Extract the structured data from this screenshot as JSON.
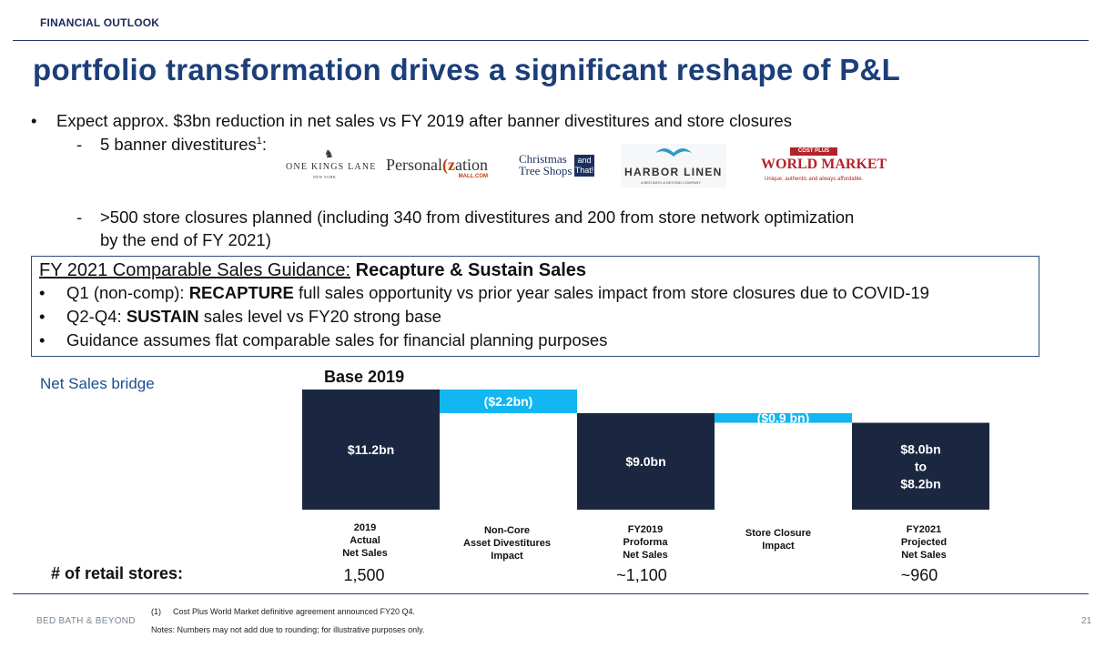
{
  "header": {
    "section": "FINANCIAL OUTLOOK",
    "title": "portfolio transformation drives a significant reshape of P&L"
  },
  "bullets": {
    "main": "Expect approx. $3bn reduction in net sales vs FY 2019 after banner divestitures and store closures",
    "sub1_text": "5 banner divestitures",
    "sub1_sup": "1",
    "sub1_colon": ":",
    "sub2_line1": ">500 store closures planned (including 340 from divestitures and 200 from store network optimization",
    "sub2_line2": "by the end of FY 2021)",
    "bullet_char": "•",
    "dash_char": "-"
  },
  "logos": {
    "one_kings_lane": "ONE KINGS LANE",
    "one_kings_lane_sub": "NEW YORK",
    "personalization_a": "Personal",
    "personalization_k": "(z",
    "personalization_b": "ation",
    "personalization_mall": "MALL.COM",
    "christmas_line1": "Christmas",
    "christmas_line2": "Tree Shops",
    "christmas_that": "and That!",
    "harbor_linen": "HARBOR LINEN",
    "harbor_linen_sub": "A BED BATH & BEYOND COMPANY",
    "world_market_top": "COST PLUS",
    "world_market": "WORLD MARKET",
    "world_market_tag": "Unique, authentic and always affordable.",
    "icon_one_kings_lane": "antelope-icon",
    "icon_harbor_linen": "seagull-icon"
  },
  "guidance": {
    "head_prefix": "FY 2021 Comparable Sales Guidance:",
    "head_bold": "Recapture & Sustain Sales",
    "items": [
      {
        "pre": "Q1 (non-comp): ",
        "bold": "RECAPTURE",
        "post": " full sales opportunity vs prior year sales impact from store closures due to COVID-19"
      },
      {
        "pre": "Q2-Q4: ",
        "bold": "SUSTAIN",
        "post": " sales level vs FY20 strong base"
      },
      {
        "pre": "Guidance assumes flat comparable sales for financial planning purposes",
        "bold": "",
        "post": ""
      }
    ]
  },
  "chart_labels": {
    "bridge": "Net Sales bridge",
    "base": "Base 2019",
    "stores_label": "# of retail stores:"
  },
  "chart_data": {
    "type": "bar",
    "subtype": "waterfall",
    "title": "Base 2019",
    "ylim": [
      0,
      11.2
    ],
    "categories": [
      "2019 Actual Net Sales",
      "Non-Core Asset Divestitures Impact",
      "FY2019 Proforma Net Sales",
      "Store Closure Impact",
      "FY2021 Projected Net Sales"
    ],
    "category_lines": [
      [
        "2019",
        "Actual",
        "Net Sales"
      ],
      [
        "Non-Core",
        "Asset Divestitures",
        "Impact"
      ],
      [
        "FY2019",
        "Proforma",
        "Net Sales"
      ],
      [
        "Store Closure",
        "Impact"
      ],
      [
        "FY2021",
        "Projected",
        "Net Sales"
      ]
    ],
    "bars": [
      {
        "kind": "total",
        "start": 0,
        "end": 11.2,
        "label": [
          "$11.2bn"
        ]
      },
      {
        "kind": "decrease",
        "start": 11.2,
        "end": 9.0,
        "label": [
          "($2.2bn)"
        ]
      },
      {
        "kind": "total",
        "start": 0,
        "end": 9.0,
        "label": [
          "$9.0bn"
        ]
      },
      {
        "kind": "decrease",
        "start": 9.0,
        "end": 8.1,
        "label": [
          "($0.9 bn)"
        ]
      },
      {
        "kind": "total",
        "start": 0,
        "end": 8.1,
        "label": [
          "$8.0bn",
          "to",
          "$8.2bn"
        ]
      }
    ],
    "stores": [
      "1,500",
      "",
      "~1,100",
      "",
      "~960"
    ],
    "colors": {
      "total": "#1b2740",
      "decrease": "#12b6f0",
      "total_text": "#ffffff",
      "decrease_text": "#ffffff"
    }
  },
  "footer": {
    "brand": "BED BATH & BEYOND",
    "footnote_num": "(1)",
    "footnote": "Cost Plus World Market definitive agreement announced FY20 Q4.",
    "notes": "Notes:  Numbers may not add due to rounding; for illustrative purposes only.",
    "page": "21"
  }
}
